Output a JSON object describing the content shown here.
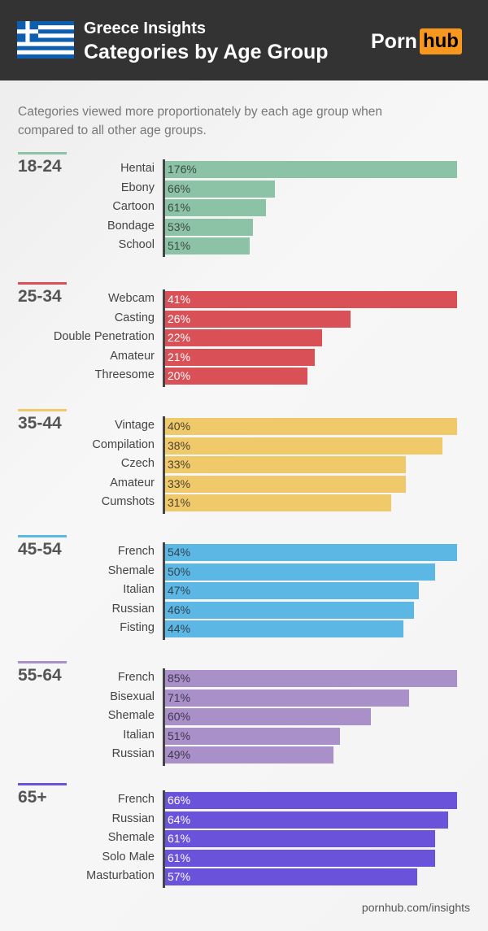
{
  "header": {
    "title_top": "Greece Insights",
    "title_main": "Categories by Age Group",
    "logo_left": "Porn",
    "logo_right": "hub"
  },
  "subtitle": "Categories viewed more proportionately by each age group when compared to all other age groups.",
  "footer": "pornhub.com/insights",
  "chart_data": {
    "type": "bar",
    "orientation": "horizontal",
    "unit": "%",
    "groups": [
      {
        "name": "18-24",
        "color": "#8cc3a6",
        "text_color": "#3d4a44",
        "categories": [
          "Hentai",
          "Ebony",
          "Cartoon",
          "Bondage",
          "School"
        ],
        "values": [
          176,
          66,
          61,
          53,
          51
        ]
      },
      {
        "name": "25-34",
        "color": "#d95157",
        "text_color": "#ffffff",
        "categories": [
          "Webcam",
          "Casting",
          "Double Penetration",
          "Amateur",
          "Threesome"
        ],
        "values": [
          41,
          26,
          22,
          21,
          20
        ]
      },
      {
        "name": "35-44",
        "color": "#f0ca6a",
        "text_color": "#4a4230",
        "categories": [
          "Vintage",
          "Compilation",
          "Czech",
          "Amateur",
          "Cumshots"
        ],
        "values": [
          40,
          38,
          33,
          33,
          31
        ]
      },
      {
        "name": "45-54",
        "color": "#5db7e5",
        "text_color": "#2f4450",
        "categories": [
          "French",
          "Shemale",
          "Italian",
          "Russian",
          "Fisting"
        ],
        "values": [
          54,
          50,
          47,
          46,
          44
        ]
      },
      {
        "name": "55-64",
        "color": "#aa90c8",
        "text_color": "#3f3650",
        "categories": [
          "French",
          "Bisexual",
          "Shemale",
          "Italian",
          "Russian"
        ],
        "values": [
          85,
          71,
          60,
          51,
          49
        ]
      },
      {
        "name": "65+",
        "color": "#6b52db",
        "text_color": "#ffffff",
        "categories": [
          "French",
          "Russian",
          "Shemale",
          "Solo Male",
          "Masturbation"
        ],
        "values": [
          66,
          64,
          61,
          61,
          57
        ]
      }
    ]
  }
}
